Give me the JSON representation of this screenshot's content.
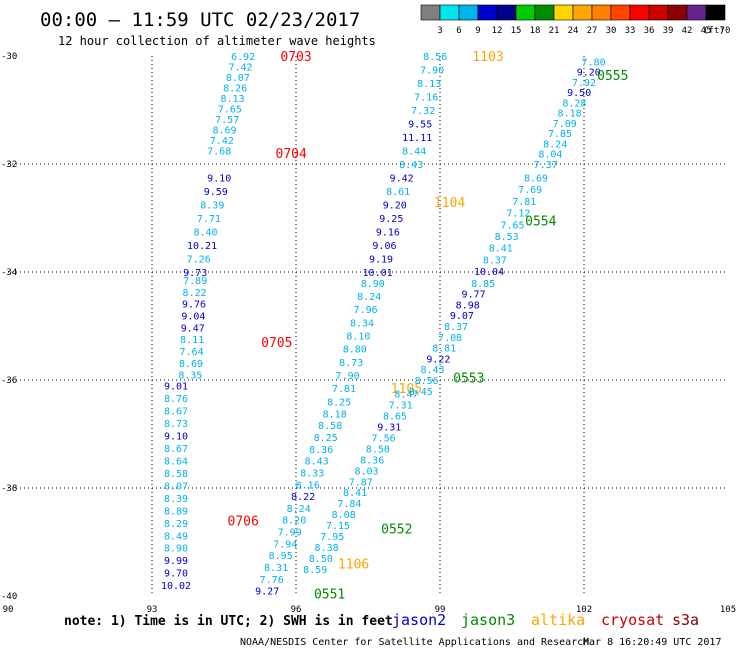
{
  "header": {
    "title": "00:00 – 11:59 UTC 02/23/2017",
    "subtitle": "12 hour collection of altimeter wave heights"
  },
  "colorbar": {
    "labels": [
      "3",
      "6",
      "9",
      "12",
      "15",
      "18",
      "21",
      "24",
      "27",
      "30",
      "33",
      "36",
      "39",
      "42",
      "45",
      "70"
    ],
    "unit": "(ft)",
    "colors": [
      "#7f7f7f",
      "#00e5ee",
      "#00b2ee",
      "#0000cd",
      "#00008b",
      "#00cd00",
      "#008b00",
      "#ffd700",
      "#ffa500",
      "#ff7f00",
      "#ff4500",
      "#ff0000",
      "#cd0000",
      "#8b0000",
      "#68228b",
      "#000000"
    ]
  },
  "footer": {
    "note": "note: 1) Time is in UTC; 2) SWH is in feet",
    "satellites": [
      {
        "name": "jason2",
        "color": "#0000cd"
      },
      {
        "name": "jason3",
        "color": "#008b00"
      },
      {
        "name": "altika",
        "color": "#ffa500"
      },
      {
        "name": "cryosat",
        "color": "#cd0000"
      },
      {
        "name": "s3a",
        "color": "#8b0000"
      }
    ],
    "credit": "NOAA/NESDIS Center for Satellite Applications and Research",
    "timestamp": "Mar  8 16:20:49 UTC 2017"
  },
  "chart_data": {
    "type": "scatter",
    "title": "12 hour collection of altimeter wave heights",
    "x_ticks": [
      "90",
      "93",
      "96",
      "99",
      "102",
      "105"
    ],
    "y_ticks": [
      "-30",
      "-32",
      "-34",
      "-36",
      "-38",
      "-40"
    ],
    "xlim": [
      90,
      105
    ],
    "ylim": [
      -40,
      -30
    ],
    "unit": "ft",
    "tracks": [
      {
        "name": "s3a",
        "label": "0703",
        "label_pos": [
          96.0,
          -30.0
        ],
        "label_color": "#ff0000",
        "start": [
          94.9,
          -30.0
        ],
        "end": [
          94.4,
          -31.75
        ],
        "values": [
          "6.92",
          "7.42",
          "8.07",
          "8.26",
          "8.13",
          "7.65",
          "7.57",
          "8.69",
          "7.42",
          "7.68"
        ],
        "colors": [
          "#00b2ee",
          "#00b2ee",
          "#00b2ee",
          "#00b2ee",
          "#00b2ee",
          "#00b2ee",
          "#00b2ee",
          "#00b2ee",
          "#00b2ee",
          "#00b2ee"
        ]
      },
      {
        "name": "s3a",
        "label": "0704",
        "label_pos": [
          95.9,
          -31.8
        ],
        "label_color": "#ff0000",
        "start": [
          94.4,
          -32.25
        ],
        "end": [
          93.9,
          -34.0
        ],
        "values": [
          "9.10",
          "9.59",
          "8.39",
          "7.71",
          "8.40",
          "10.21",
          "7.26",
          "9.73"
        ],
        "colors": [
          "#0000cd",
          "#0000cd",
          "#00b2ee",
          "#00b2ee",
          "#00b2ee",
          "#0000cd",
          "#00b2ee",
          "#0000cd"
        ]
      },
      {
        "name": "s3a",
        "label": "0705",
        "label_pos": [
          95.6,
          -35.3
        ],
        "label_color": "#ff0000",
        "start": [
          93.9,
          -34.15
        ],
        "end": [
          93.8,
          -35.9
        ],
        "values": [
          "7.89",
          "8.22",
          "9.76",
          "9.04",
          "9.47",
          "8.11",
          "7.64",
          "8.69",
          "8.35"
        ],
        "colors": [
          "#00b2ee",
          "#00b2ee",
          "#0000cd",
          "#0000cd",
          "#0000cd",
          "#00b2ee",
          "#00b2ee",
          "#00b2ee",
          "#00b2ee"
        ]
      },
      {
        "name": "s3a",
        "label": "0706",
        "label_pos": [
          94.9,
          -38.6
        ],
        "label_color": "#ff0000",
        "start": [
          93.5,
          -36.1
        ],
        "end": [
          93.5,
          -39.8
        ],
        "values": [
          "9.01",
          "8.76",
          "8.67",
          "8.73",
          "9.10",
          "8.67",
          "8.64",
          "8.58",
          "8.07",
          "8.39",
          "8.89",
          "8.29",
          "8.49",
          "8.90",
          "9.99",
          "9.70",
          "10.02"
        ],
        "colors": [
          "#0000cd",
          "#00b2ee",
          "#00b2ee",
          "#00b2ee",
          "#0000cd",
          "#00b2ee",
          "#00b2ee",
          "#00b2ee",
          "#00b2ee",
          "#00b2ee",
          "#00b2ee",
          "#00b2ee",
          "#00b2ee",
          "#00b2ee",
          "#0000cd",
          "#0000cd",
          "#0000cd"
        ]
      },
      {
        "name": "altika",
        "label": "1103",
        "label_pos": [
          100.0,
          -30.0
        ],
        "label_color": "#ffa500",
        "start": [
          98.9,
          -30.0
        ],
        "end": [
          98.4,
          -32.0
        ],
        "values": [
          "8.56",
          "7.90",
          "8.13",
          "7.16",
          "7.32",
          "9.55",
          "11.11",
          "8.44",
          "8.43"
        ],
        "colors": [
          "#00b2ee",
          "#00b2ee",
          "#00b2ee",
          "#00b2ee",
          "#00b2ee",
          "#0000cd",
          "#0000cd",
          "#00b2ee",
          "#00b2ee"
        ]
      },
      {
        "name": "altika",
        "label": "1104",
        "label_pos": [
          99.2,
          -32.7
        ],
        "label_color": "#ffa500",
        "start": [
          98.2,
          -32.25
        ],
        "end": [
          97.7,
          -34.0
        ],
        "values": [
          "9.42",
          "8.61",
          "9.20",
          "9.25",
          "9.16",
          "9.06",
          "9.19",
          "10.01"
        ],
        "colors": [
          "#0000cd",
          "#00b2ee",
          "#0000cd",
          "#0000cd",
          "#0000cd",
          "#0000cd",
          "#0000cd",
          "#0000cd"
        ]
      },
      {
        "name": "altika",
        "label": "1105",
        "label_pos": [
          98.3,
          -36.15
        ],
        "label_color": "#ffa500",
        "start": [
          97.6,
          -34.2
        ],
        "end": [
          97.0,
          -36.15
        ],
        "values": [
          "8.90",
          "8.24",
          "7.96",
          "8.34",
          "8.10",
          "8.80",
          "8.73",
          "7.90",
          "7.81"
        ],
        "colors": [
          "#00b2ee",
          "#00b2ee",
          "#00b2ee",
          "#00b2ee",
          "#00b2ee",
          "#00b2ee",
          "#00b2ee",
          "#00b2ee",
          "#00b2ee"
        ]
      },
      {
        "name": "altika",
        "label": "1106",
        "label_pos": [
          97.2,
          -39.4
        ],
        "label_color": "#ffa500",
        "start": [
          96.9,
          -36.4
        ],
        "end": [
          95.4,
          -39.9
        ],
        "values": [
          "8.25",
          "8.18",
          "8.58",
          "8.25",
          "8.36",
          "8.43",
          "8.33",
          "8.16",
          "8.22",
          "8.24",
          "8.20",
          "7.99",
          "7.94",
          "8.95",
          "8.31",
          "7.76",
          "9.27"
        ],
        "colors": [
          "#00b2ee",
          "#00b2ee",
          "#00b2ee",
          "#00b2ee",
          "#00b2ee",
          "#00b2ee",
          "#00b2ee",
          "#00b2ee",
          "#0000cd",
          "#00b2ee",
          "#00b2ee",
          "#00b2ee",
          "#00b2ee",
          "#00b2ee",
          "#00b2ee",
          "#00b2ee",
          "#0000cd"
        ]
      },
      {
        "name": "jason3",
        "label": "0555",
        "label_pos": [
          102.6,
          -30.35
        ],
        "label_color": "#008b00",
        "start": [
          102.2,
          -30.1
        ],
        "end": [
          101.2,
          -32.0
        ],
        "values": [
          "7.80",
          "9.20",
          "7.92",
          "9.50",
          "8.28",
          "8.18",
          "7.09",
          "7.85",
          "8.24",
          "8.04",
          "7.37"
        ],
        "colors": [
          "#00b2ee",
          "#0000cd",
          "#00b2ee",
          "#0000cd",
          "#00b2ee",
          "#00b2ee",
          "#00b2ee",
          "#00b2ee",
          "#00b2ee",
          "#00b2ee",
          "#00b2ee"
        ]
      },
      {
        "name": "jason3",
        "label": "0554",
        "label_pos": [
          101.1,
          -33.05
        ],
        "label_color": "#008b00",
        "start": [
          101.0,
          -32.25
        ],
        "end": [
          99.9,
          -34.2
        ],
        "values": [
          "8.69",
          "7.69",
          "7.81",
          "7.12",
          "7.65",
          "8.53",
          "8.41",
          "8.37",
          "10.04",
          "8.85"
        ],
        "colors": [
          "#00b2ee",
          "#00b2ee",
          "#00b2ee",
          "#00b2ee",
          "#00b2ee",
          "#00b2ee",
          "#00b2ee",
          "#00b2ee",
          "#0000cd",
          "#00b2ee"
        ]
      },
      {
        "name": "jason3",
        "label": "0553",
        "label_pos": [
          99.6,
          -35.95
        ],
        "label_color": "#008b00",
        "start": [
          99.7,
          -34.4
        ],
        "end": [
          98.6,
          -36.2
        ],
        "values": [
          "9.77",
          "8.98",
          "9.07",
          "8.37",
          "7.08",
          "8.81",
          "9.22",
          "8.43",
          "8.56",
          "8.45"
        ],
        "colors": [
          "#0000cd",
          "#0000cd",
          "#0000cd",
          "#00b2ee",
          "#00b2ee",
          "#00b2ee",
          "#0000cd",
          "#00b2ee",
          "#00b2ee",
          "#00b2ee"
        ]
      },
      {
        "name": "jason3",
        "label": "0552",
        "label_pos": [
          98.1,
          -38.75
        ],
        "label_color": "#008b00",
        "start": [
          98.3,
          -36.25
        ],
        "end": [
          96.4,
          -39.5
        ],
        "values": [
          "8.47",
          "7.31",
          "8.65",
          "9.31",
          "7.56",
          "8.50",
          "8.36",
          "8.03",
          "7.87",
          "8.41",
          "7.84",
          "8.08",
          "7.15",
          "7.95",
          "8.38",
          "8.50",
          "8.59"
        ],
        "colors": [
          "#00b2ee",
          "#00b2ee",
          "#00b2ee",
          "#0000cd",
          "#00b2ee",
          "#00b2ee",
          "#00b2ee",
          "#00b2ee",
          "#00b2ee",
          "#00b2ee",
          "#00b2ee",
          "#00b2ee",
          "#00b2ee",
          "#00b2ee",
          "#00b2ee",
          "#00b2ee",
          "#00b2ee"
        ]
      },
      {
        "name": "jason3",
        "label": "0551",
        "label_pos": [
          96.7,
          -39.95
        ],
        "label_color": "#008b00",
        "start": [
          0,
          0
        ],
        "end": [
          0,
          0
        ],
        "values": [],
        "colors": []
      }
    ]
  }
}
